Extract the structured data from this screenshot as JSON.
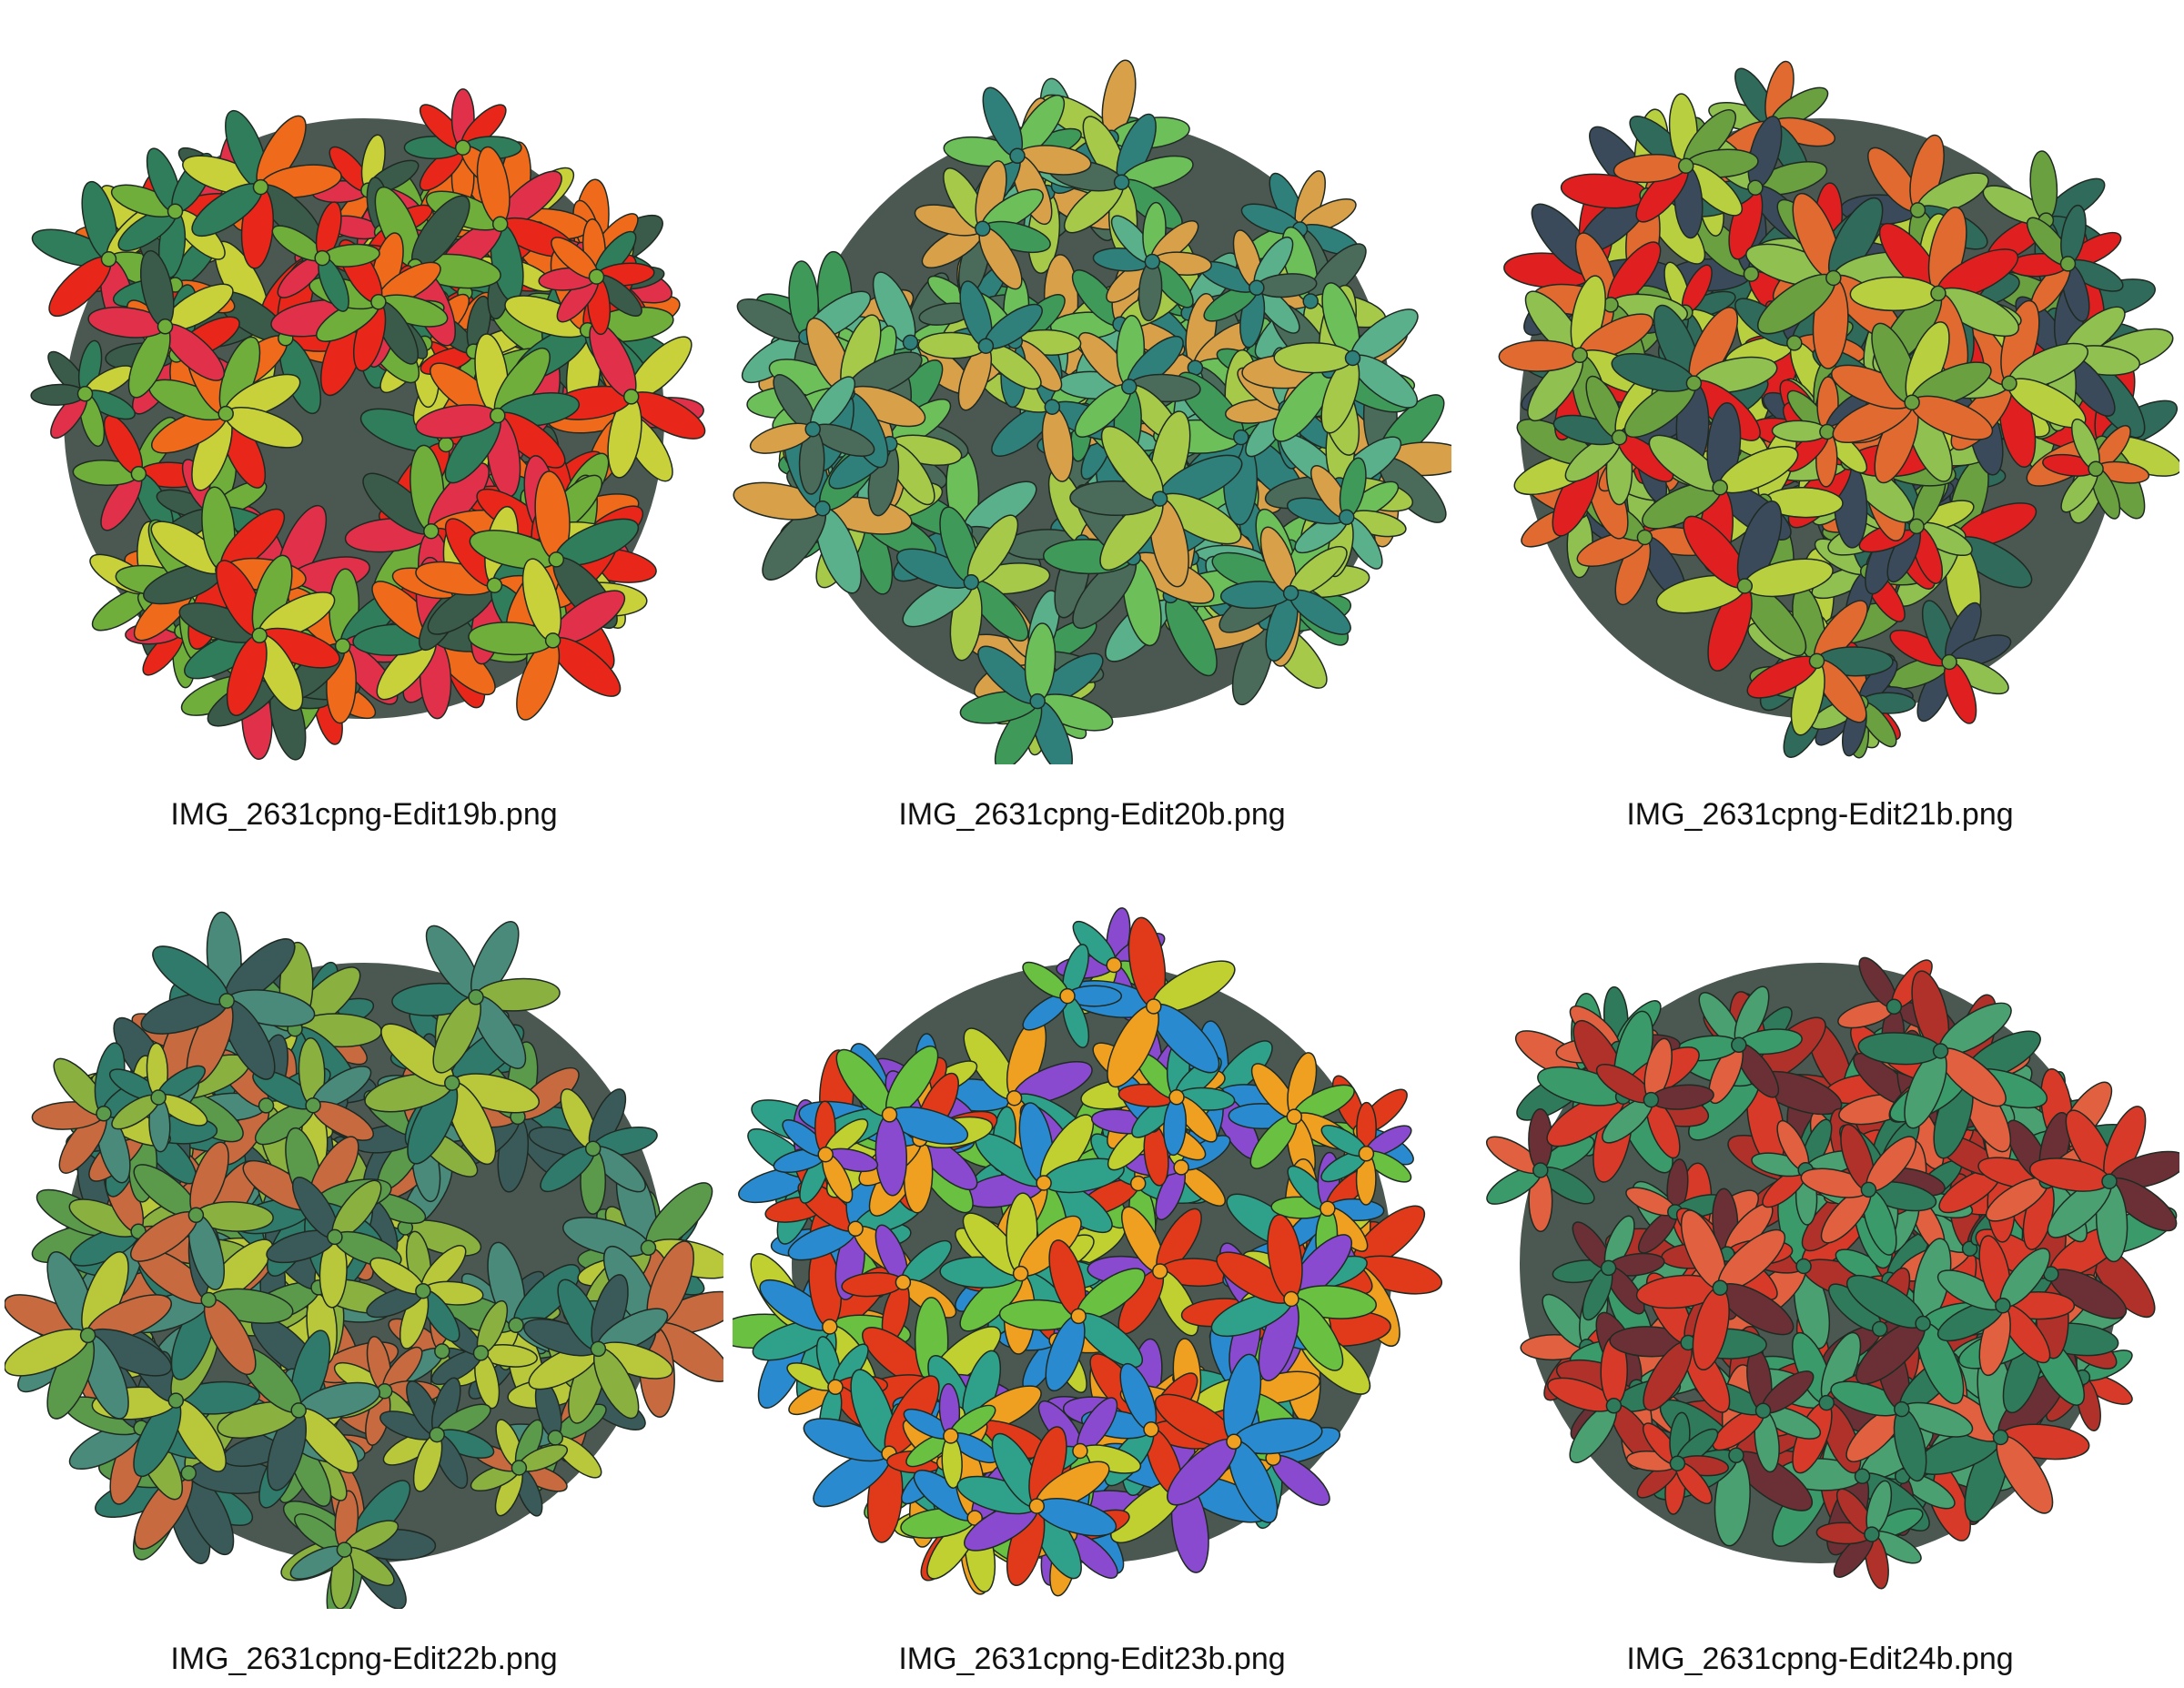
{
  "images": [
    {
      "caption": "IMG_2631cpng-Edit19b.png"
    },
    {
      "caption": "IMG_2631cpng-Edit20b.png"
    },
    {
      "caption": "IMG_2631cpng-Edit21b.png"
    },
    {
      "caption": "IMG_2631cpng-Edit22b.png"
    },
    {
      "caption": "IMG_2631cpng-Edit23b.png"
    },
    {
      "caption": "IMG_2631cpng-Edit24b.png"
    }
  ]
}
